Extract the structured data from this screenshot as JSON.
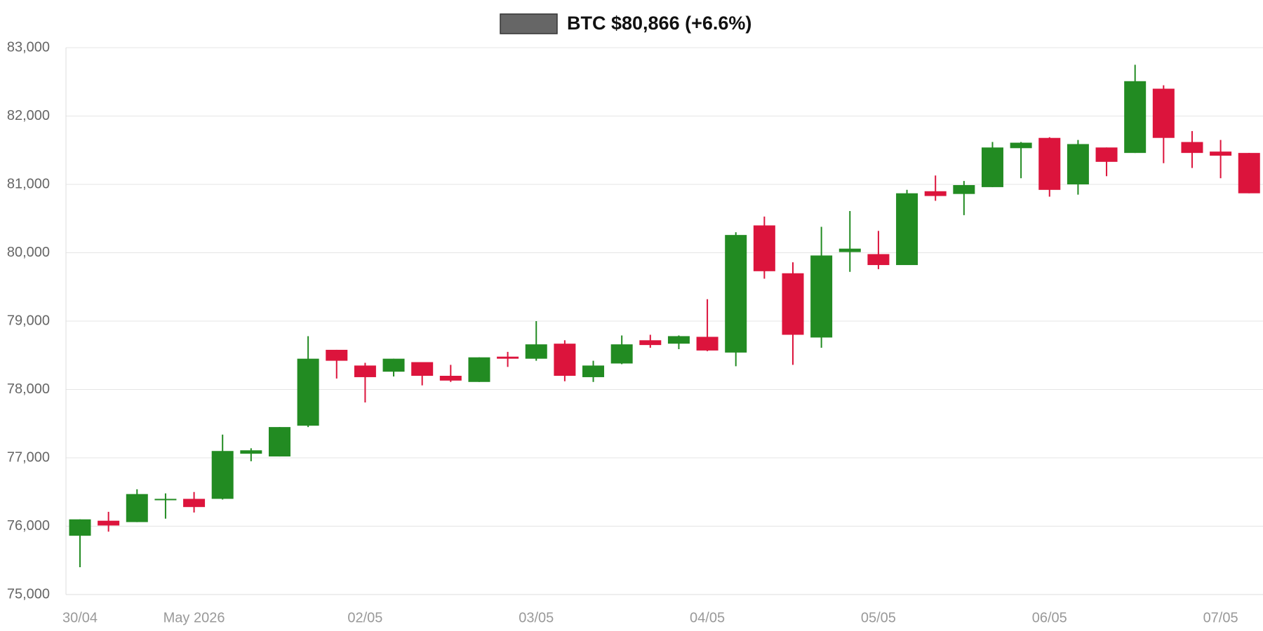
{
  "chart_data": {
    "type": "candlestick",
    "categories": [
      "30/04",
      null,
      null,
      null,
      "May 2026",
      null,
      null,
      null,
      null,
      null,
      "02/05",
      null,
      null,
      null,
      null,
      null,
      "03/05",
      null,
      null,
      null,
      null,
      null,
      "04/05",
      null,
      null,
      null,
      null,
      null,
      "05/05",
      null,
      null,
      null,
      null,
      null,
      "06/05",
      null,
      null,
      null,
      null,
      null,
      "07/05",
      null
    ],
    "series": [
      {
        "name": "BTC $80,866 (+6.6%)",
        "color": "#666666",
        "up_color": "#228b22",
        "down_color": "#dc143c",
        "open": [
          75860,
          76080,
          76060,
          76380,
          76400,
          76400,
          77060,
          77020,
          77470,
          78580,
          78350,
          78260,
          78400,
          78200,
          78110,
          78480,
          78450,
          78670,
          78180,
          78380,
          78720,
          78670,
          78770,
          78540,
          80400,
          79700,
          78760,
          80010,
          79980,
          79820,
          80900,
          80860,
          80960,
          81530,
          81680,
          81000,
          81540,
          81460,
          82400,
          81620,
          81480,
          81460
        ],
        "high": [
          76100,
          76210,
          76540,
          76480,
          76500,
          77340,
          77140,
          77450,
          78780,
          78580,
          78390,
          78450,
          78400,
          78360,
          78470,
          78550,
          79000,
          78720,
          78420,
          78790,
          78800,
          78790,
          79320,
          80300,
          80530,
          79860,
          80380,
          80610,
          80320,
          80920,
          81130,
          81050,
          81620,
          81620,
          81690,
          81650,
          81540,
          82750,
          82450,
          81780,
          81650,
          81460
        ],
        "low": [
          75400,
          75920,
          76060,
          76110,
          76200,
          76390,
          76950,
          77020,
          77450,
          78160,
          77810,
          78190,
          78060,
          78110,
          78110,
          78330,
          78420,
          78120,
          78110,
          78370,
          78610,
          78590,
          78560,
          78340,
          79620,
          78360,
          78610,
          79720,
          79760,
          79820,
          80760,
          80550,
          80960,
          81090,
          80820,
          80850,
          81120,
          81460,
          81310,
          81240,
          81090,
          80870
        ],
        "close": [
          76100,
          76010,
          76470,
          76400,
          76280,
          77100,
          77110,
          77450,
          78450,
          78420,
          78180,
          78450,
          78200,
          78130,
          78470,
          78450,
          78660,
          78200,
          78350,
          78660,
          78650,
          78780,
          78570,
          80260,
          79730,
          78800,
          79960,
          80060,
          79820,
          80870,
          80830,
          80990,
          81540,
          81610,
          80920,
          81590,
          81330,
          82510,
          81680,
          81460,
          81420,
          80870
        ]
      }
    ],
    "ylim": [
      75000,
      83000
    ],
    "yticks": [
      {
        "value": 75000,
        "label": "75,000"
      },
      {
        "value": 76000,
        "label": "76,000"
      },
      {
        "value": 77000,
        "label": "77,000"
      },
      {
        "value": 78000,
        "label": "78,000"
      },
      {
        "value": 79000,
        "label": "79,000"
      },
      {
        "value": 80000,
        "label": "80,000"
      },
      {
        "value": 81000,
        "label": "81,000"
      },
      {
        "value": 82000,
        "label": "82,000"
      },
      {
        "value": 83000,
        "label": "83,000"
      }
    ],
    "grid": true
  }
}
